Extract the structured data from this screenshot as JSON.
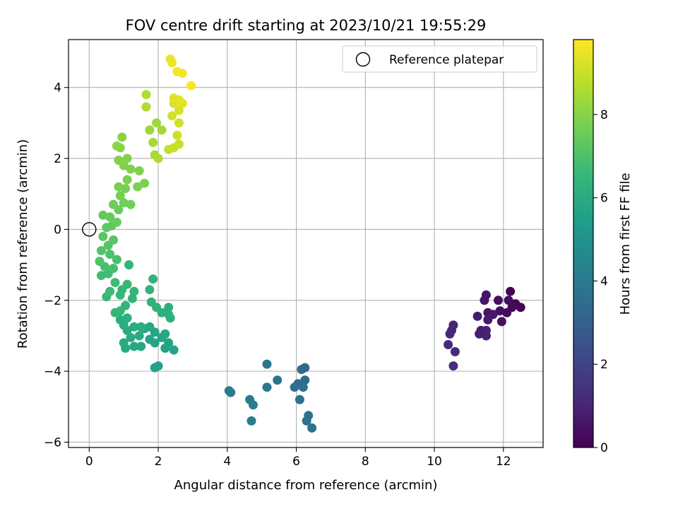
{
  "chart_data": {
    "type": "scatter",
    "title": "FOV centre drift starting at 2023/10/21 19:55:29",
    "xlabel": "Angular distance from reference (arcmin)",
    "ylabel": "Rotation from reference (arcmin)",
    "xlim": [
      -0.6,
      13.15
    ],
    "ylim": [
      -6.15,
      5.35
    ],
    "xticks": [
      0,
      2,
      4,
      6,
      8,
      10,
      12
    ],
    "yticks": [
      -6,
      -4,
      -2,
      0,
      2,
      4
    ],
    "xtick_labels": [
      "0",
      "2",
      "4",
      "6",
      "8",
      "10",
      "12"
    ],
    "ytick_labels": [
      "−6",
      "−4",
      "−2",
      "0",
      "2",
      "4"
    ],
    "grid": true,
    "legend": {
      "position": "top-right",
      "entries": [
        "Reference platepar"
      ]
    },
    "reference_point": {
      "x": 0,
      "y": 0,
      "label": "Reference platepar"
    },
    "colorbar": {
      "label": "Hours from first FF file",
      "min": 0,
      "max": 9.8,
      "ticks": [
        0,
        2,
        4,
        6,
        8
      ],
      "tick_labels": [
        "0",
        "2",
        "4",
        "6",
        "8"
      ],
      "colormap": "viridis",
      "colormap_stops": [
        "#440154",
        "#482878",
        "#3e4989",
        "#31688e",
        "#26828e",
        "#1f9e89",
        "#35b779",
        "#6ece58",
        "#b5de2b",
        "#fde725"
      ]
    },
    "point_color_encoding": "hours",
    "points": [
      {
        "x": 12.2,
        "y": -1.75,
        "h": 0.1
      },
      {
        "x": 12.35,
        "y": -2.1,
        "h": 0.1
      },
      {
        "x": 12.5,
        "y": -2.2,
        "h": 0.15
      },
      {
        "x": 12.25,
        "y": -2.2,
        "h": 0.2
      },
      {
        "x": 12.1,
        "y": -2.35,
        "h": 0.25
      },
      {
        "x": 12.15,
        "y": -2.0,
        "h": 0.3
      },
      {
        "x": 11.85,
        "y": -2.0,
        "h": 0.35
      },
      {
        "x": 11.9,
        "y": -2.3,
        "h": 0.4
      },
      {
        "x": 11.95,
        "y": -2.6,
        "h": 0.45
      },
      {
        "x": 11.5,
        "y": -1.85,
        "h": 0.5
      },
      {
        "x": 11.45,
        "y": -2.0,
        "h": 0.55
      },
      {
        "x": 11.55,
        "y": -2.35,
        "h": 0.6
      },
      {
        "x": 11.7,
        "y": -2.4,
        "h": 0.65
      },
      {
        "x": 11.55,
        "y": -2.55,
        "h": 0.7
      },
      {
        "x": 11.25,
        "y": -2.45,
        "h": 0.75
      },
      {
        "x": 11.35,
        "y": -2.85,
        "h": 0.8
      },
      {
        "x": 11.3,
        "y": -2.95,
        "h": 0.85
      },
      {
        "x": 11.5,
        "y": -2.85,
        "h": 0.9
      },
      {
        "x": 11.5,
        "y": -3.0,
        "h": 0.95
      },
      {
        "x": 10.55,
        "y": -2.7,
        "h": 1.0
      },
      {
        "x": 10.5,
        "y": -2.85,
        "h": 1.05
      },
      {
        "x": 10.45,
        "y": -2.95,
        "h": 1.1
      },
      {
        "x": 10.4,
        "y": -3.25,
        "h": 1.15
      },
      {
        "x": 10.6,
        "y": -3.45,
        "h": 1.2
      },
      {
        "x": 10.55,
        "y": -3.85,
        "h": 1.3
      },
      {
        "x": 6.25,
        "y": -3.9,
        "h": 3.3
      },
      {
        "x": 6.15,
        "y": -3.95,
        "h": 3.35
      },
      {
        "x": 6.25,
        "y": -4.25,
        "h": 3.4
      },
      {
        "x": 6.05,
        "y": -4.35,
        "h": 3.45
      },
      {
        "x": 5.95,
        "y": -4.45,
        "h": 3.5
      },
      {
        "x": 6.2,
        "y": -4.45,
        "h": 3.55
      },
      {
        "x": 6.1,
        "y": -4.8,
        "h": 3.6
      },
      {
        "x": 6.35,
        "y": -5.25,
        "h": 3.65
      },
      {
        "x": 6.3,
        "y": -5.4,
        "h": 3.7
      },
      {
        "x": 6.45,
        "y": -5.6,
        "h": 3.75
      },
      {
        "x": 5.15,
        "y": -3.8,
        "h": 3.8
      },
      {
        "x": 5.45,
        "y": -4.25,
        "h": 3.85
      },
      {
        "x": 5.15,
        "y": -4.45,
        "h": 3.9
      },
      {
        "x": 4.05,
        "y": -4.55,
        "h": 4.0
      },
      {
        "x": 4.1,
        "y": -4.6,
        "h": 4.05
      },
      {
        "x": 4.65,
        "y": -4.8,
        "h": 4.1
      },
      {
        "x": 4.75,
        "y": -4.95,
        "h": 4.15
      },
      {
        "x": 4.7,
        "y": -5.4,
        "h": 4.2
      },
      {
        "x": 2.0,
        "y": -3.85,
        "h": 5.6
      },
      {
        "x": 1.9,
        "y": -3.9,
        "h": 5.6
      },
      {
        "x": 2.45,
        "y": -3.4,
        "h": 5.65
      },
      {
        "x": 2.2,
        "y": -3.35,
        "h": 5.65
      },
      {
        "x": 2.3,
        "y": -3.2,
        "h": 5.7
      },
      {
        "x": 2.1,
        "y": -3.05,
        "h": 5.7
      },
      {
        "x": 1.9,
        "y": -3.2,
        "h": 5.75
      },
      {
        "x": 1.75,
        "y": -3.1,
        "h": 5.75
      },
      {
        "x": 1.9,
        "y": -2.9,
        "h": 5.8
      },
      {
        "x": 2.2,
        "y": -2.95,
        "h": 5.8
      },
      {
        "x": 1.75,
        "y": -2.75,
        "h": 5.85
      },
      {
        "x": 1.6,
        "y": -2.8,
        "h": 5.85
      },
      {
        "x": 1.5,
        "y": -3.3,
        "h": 5.9
      },
      {
        "x": 1.3,
        "y": -3.3,
        "h": 5.9
      },
      {
        "x": 1.05,
        "y": -3.35,
        "h": 5.95
      },
      {
        "x": 1.0,
        "y": -3.2,
        "h": 5.95
      },
      {
        "x": 1.2,
        "y": -3.05,
        "h": 6.0
      },
      {
        "x": 1.45,
        "y": -3.0,
        "h": 6.0
      },
      {
        "x": 1.1,
        "y": -2.85,
        "h": 6.05
      },
      {
        "x": 1.3,
        "y": -2.75,
        "h": 6.05
      },
      {
        "x": 1.5,
        "y": -2.75,
        "h": 6.1
      },
      {
        "x": 1.0,
        "y": -2.7,
        "h": 6.1
      },
      {
        "x": 0.9,
        "y": -2.55,
        "h": 6.15
      },
      {
        "x": 1.1,
        "y": -2.5,
        "h": 6.15
      },
      {
        "x": 2.3,
        "y": -2.2,
        "h": 6.2
      },
      {
        "x": 2.1,
        "y": -2.35,
        "h": 6.2
      },
      {
        "x": 2.3,
        "y": -2.4,
        "h": 6.25
      },
      {
        "x": 2.35,
        "y": -2.5,
        "h": 6.25
      },
      {
        "x": 1.95,
        "y": -2.2,
        "h": 6.3
      },
      {
        "x": 1.8,
        "y": -2.05,
        "h": 6.3
      },
      {
        "x": 1.75,
        "y": -1.7,
        "h": 6.35
      },
      {
        "x": 1.85,
        "y": -1.4,
        "h": 6.35
      },
      {
        "x": 1.15,
        "y": -1.0,
        "h": 6.4
      },
      {
        "x": 1.3,
        "y": -1.75,
        "h": 6.4
      },
      {
        "x": 1.25,
        "y": -1.95,
        "h": 6.45
      },
      {
        "x": 1.05,
        "y": -2.15,
        "h": 6.45
      },
      {
        "x": 0.9,
        "y": -2.3,
        "h": 6.5
      },
      {
        "x": 0.75,
        "y": -2.35,
        "h": 6.5
      },
      {
        "x": 1.1,
        "y": -1.55,
        "h": 6.55
      },
      {
        "x": 0.95,
        "y": -1.7,
        "h": 6.55
      },
      {
        "x": 0.9,
        "y": -1.85,
        "h": 6.6
      },
      {
        "x": 0.5,
        "y": -1.9,
        "h": 6.6
      },
      {
        "x": 0.6,
        "y": -1.75,
        "h": 6.65
      },
      {
        "x": 0.75,
        "y": -1.5,
        "h": 6.7
      },
      {
        "x": 0.35,
        "y": -1.3,
        "h": 6.75
      },
      {
        "x": 0.55,
        "y": -1.25,
        "h": 6.8
      },
      {
        "x": 0.45,
        "y": -1.05,
        "h": 6.85
      },
      {
        "x": 0.7,
        "y": -1.1,
        "h": 6.9
      },
      {
        "x": 0.8,
        "y": -0.85,
        "h": 6.95
      },
      {
        "x": 0.6,
        "y": -0.7,
        "h": 7.0
      },
      {
        "x": 0.3,
        "y": -0.9,
        "h": 7.05
      },
      {
        "x": 0.35,
        "y": -0.6,
        "h": 7.1
      },
      {
        "x": 0.55,
        "y": -0.45,
        "h": 7.15
      },
      {
        "x": 0.7,
        "y": -0.3,
        "h": 7.2
      },
      {
        "x": 0.4,
        "y": -0.2,
        "h": 7.25
      },
      {
        "x": 0.5,
        "y": 0.05,
        "h": 7.3
      },
      {
        "x": 0.65,
        "y": 0.1,
        "h": 7.35
      },
      {
        "x": 0.4,
        "y": 0.4,
        "h": 7.4
      },
      {
        "x": 0.6,
        "y": 0.35,
        "h": 7.45
      },
      {
        "x": 0.8,
        "y": 0.2,
        "h": 7.5
      },
      {
        "x": 0.85,
        "y": 0.55,
        "h": 7.55
      },
      {
        "x": 0.7,
        "y": 0.7,
        "h": 7.6
      },
      {
        "x": 1.0,
        "y": 0.75,
        "h": 7.65
      },
      {
        "x": 0.9,
        "y": 0.95,
        "h": 7.7
      },
      {
        "x": 1.2,
        "y": 0.7,
        "h": 7.7
      },
      {
        "x": 0.85,
        "y": 1.2,
        "h": 7.75
      },
      {
        "x": 1.05,
        "y": 1.15,
        "h": 7.75
      },
      {
        "x": 1.1,
        "y": 1.4,
        "h": 7.8
      },
      {
        "x": 1.4,
        "y": 1.2,
        "h": 7.8
      },
      {
        "x": 1.6,
        "y": 1.3,
        "h": 7.85
      },
      {
        "x": 1.45,
        "y": 1.65,
        "h": 7.85
      },
      {
        "x": 1.2,
        "y": 1.7,
        "h": 7.9
      },
      {
        "x": 1.0,
        "y": 1.8,
        "h": 7.9
      },
      {
        "x": 0.85,
        "y": 1.95,
        "h": 7.95
      },
      {
        "x": 1.1,
        "y": 2.0,
        "h": 7.95
      },
      {
        "x": 0.9,
        "y": 2.3,
        "h": 8.0
      },
      {
        "x": 0.95,
        "y": 2.6,
        "h": 8.05
      },
      {
        "x": 0.8,
        "y": 2.35,
        "h": 8.05
      },
      {
        "x": 1.75,
        "y": 2.8,
        "h": 8.3
      },
      {
        "x": 1.95,
        "y": 3.0,
        "h": 8.35
      },
      {
        "x": 2.1,
        "y": 2.8,
        "h": 8.4
      },
      {
        "x": 1.85,
        "y": 2.45,
        "h": 8.45
      },
      {
        "x": 1.9,
        "y": 2.1,
        "h": 8.5
      },
      {
        "x": 2.0,
        "y": 2.0,
        "h": 8.55
      },
      {
        "x": 1.65,
        "y": 3.45,
        "h": 8.6
      },
      {
        "x": 1.65,
        "y": 3.8,
        "h": 8.65
      },
      {
        "x": 2.3,
        "y": 2.25,
        "h": 8.9
      },
      {
        "x": 2.45,
        "y": 2.3,
        "h": 8.95
      },
      {
        "x": 2.6,
        "y": 2.4,
        "h": 9.0
      },
      {
        "x": 2.55,
        "y": 2.65,
        "h": 9.05
      },
      {
        "x": 2.6,
        "y": 3.0,
        "h": 9.1
      },
      {
        "x": 2.4,
        "y": 3.2,
        "h": 9.15
      },
      {
        "x": 2.6,
        "y": 3.35,
        "h": 9.2
      },
      {
        "x": 2.45,
        "y": 3.55,
        "h": 9.25
      },
      {
        "x": 2.7,
        "y": 3.55,
        "h": 9.3
      },
      {
        "x": 2.45,
        "y": 3.7,
        "h": 9.35
      },
      {
        "x": 2.6,
        "y": 3.65,
        "h": 9.4
      },
      {
        "x": 2.35,
        "y": 4.8,
        "h": 9.5
      },
      {
        "x": 2.4,
        "y": 4.7,
        "h": 9.55
      },
      {
        "x": 2.55,
        "y": 4.45,
        "h": 9.6
      },
      {
        "x": 2.7,
        "y": 4.4,
        "h": 9.65
      },
      {
        "x": 2.95,
        "y": 4.05,
        "h": 9.7
      }
    ]
  }
}
